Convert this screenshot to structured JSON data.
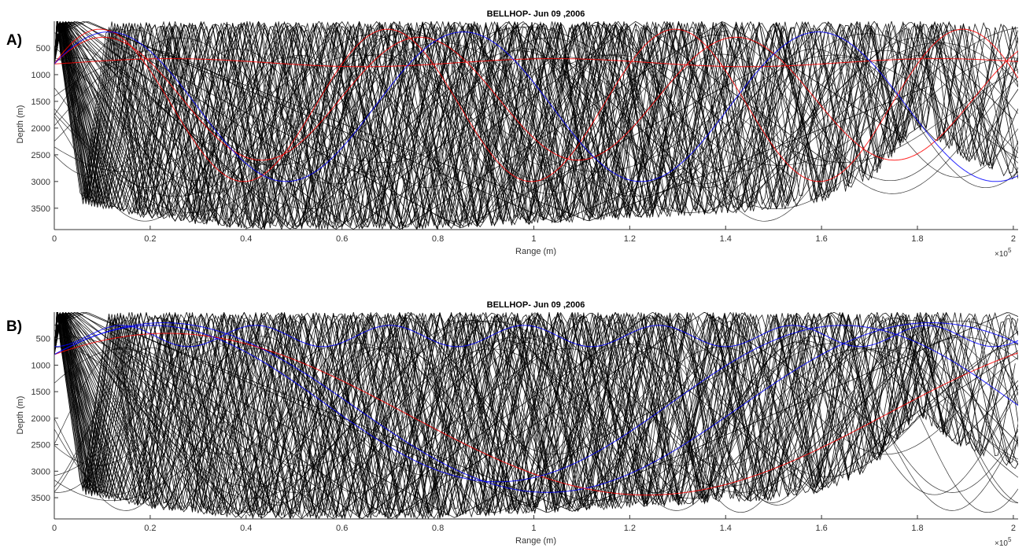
{
  "panels": [
    {
      "letter": "A)",
      "title": "BELLHOP- Jun 09 ,2006",
      "xlabel": "Range (m)",
      "ylabel": "Depth (m)",
      "x_exponent_base": "×10",
      "x_exponent_power": "5"
    },
    {
      "letter": "B)",
      "title": "BELLHOP- Jun 09 ,2006",
      "xlabel": "Range (m)",
      "ylabel": "Depth (m)",
      "x_exponent_base": "×10",
      "x_exponent_power": "5"
    }
  ],
  "chart_data": [
    {
      "type": "line",
      "panel": "A)",
      "title": "BELLHOP- Jun 09 ,2006",
      "xlabel": "Range (m)",
      "ylabel": "Depth (m)",
      "x_scale_multiplier": "×10^5",
      "x_tick_labels": [
        "0",
        "0.2",
        "0.4",
        "0.6",
        "0.8",
        "1",
        "1.2",
        "1.4",
        "1.6",
        "1.8",
        "2"
      ],
      "y_tick_labels": [
        "500",
        "1000",
        "1500",
        "2000",
        "2500",
        "3000",
        "3500"
      ],
      "xlim": [
        0,
        201000
      ],
      "ylim": [
        0,
        3900
      ],
      "y_reversed": true,
      "grid": false,
      "source_depth": 800,
      "series_colors": {
        "bottom_bounce": "#000000",
        "refracted_shallow": "#ff0000",
        "refracted_deep": "#0000ff"
      },
      "bathymetry": {
        "range": [
          0,
          4000,
          20000,
          40000,
          60000,
          80000,
          100000,
          120000,
          140000,
          150000,
          160000,
          170000,
          180000,
          190000,
          201000
        ],
        "depth": [
          0,
          3400,
          3700,
          3900,
          3900,
          3900,
          3800,
          3700,
          3600,
          3550,
          3400,
          3000,
          2000,
          2600,
          3000
        ]
      },
      "refracted_rays": [
        {
          "color": "#ff0000",
          "depth_min": 700,
          "depth_max": 850,
          "half_period": 40000
        },
        {
          "color": "#ff0000",
          "depth_min": 300,
          "depth_max": 2600,
          "half_period": 33000
        },
        {
          "color": "#ff0000",
          "depth_min": 150,
          "depth_max": 3000,
          "half_period": 30000
        },
        {
          "color": "#0000ff",
          "depth_min": 200,
          "depth_max": 3000,
          "half_period": 37000
        }
      ],
      "bottom_bounce_ray_count": 70
    },
    {
      "type": "line",
      "panel": "B)",
      "title": "BELLHOP- Jun 09 ,2006",
      "xlabel": "Range (m)",
      "ylabel": "Depth (m)",
      "x_scale_multiplier": "×10^5",
      "x_tick_labels": [
        "0",
        "0.2",
        "0.4",
        "0.6",
        "0.8",
        "1",
        "1.2",
        "1.4",
        "1.6",
        "1.8",
        "2"
      ],
      "y_tick_labels": [
        "500",
        "1000",
        "1500",
        "2000",
        "2500",
        "3000",
        "3500"
      ],
      "xlim": [
        0,
        201000
      ],
      "ylim": [
        0,
        3900
      ],
      "y_reversed": true,
      "grid": false,
      "source_depth": 800,
      "series_colors": {
        "bottom_bounce": "#000000",
        "refracted_shallow": "#ff0000",
        "refracted_deep": "#0000ff"
      },
      "bathymetry": {
        "range": [
          0,
          4000,
          20000,
          40000,
          60000,
          80000,
          100000,
          120000,
          140000,
          150000,
          160000,
          170000,
          180000,
          190000,
          201000
        ],
        "depth": [
          0,
          3400,
          3700,
          3900,
          3900,
          3900,
          3800,
          3700,
          3600,
          3550,
          3400,
          3000,
          2000,
          2600,
          3000
        ]
      },
      "refracted_rays": [
        {
          "color": "#0000ff",
          "depth_min": 250,
          "depth_max": 650,
          "half_period": 14000
        },
        {
          "color": "#0000ff",
          "depth_min": 200,
          "depth_max": 3400,
          "half_period": 80000
        },
        {
          "color": "#ff0000",
          "depth_min": 400,
          "depth_max": 3450,
          "half_period": 100000
        },
        {
          "color": "#0000ff",
          "depth_min": 250,
          "depth_max": 3200,
          "half_period": 72000
        }
      ],
      "bottom_bounce_ray_count": 70
    }
  ]
}
